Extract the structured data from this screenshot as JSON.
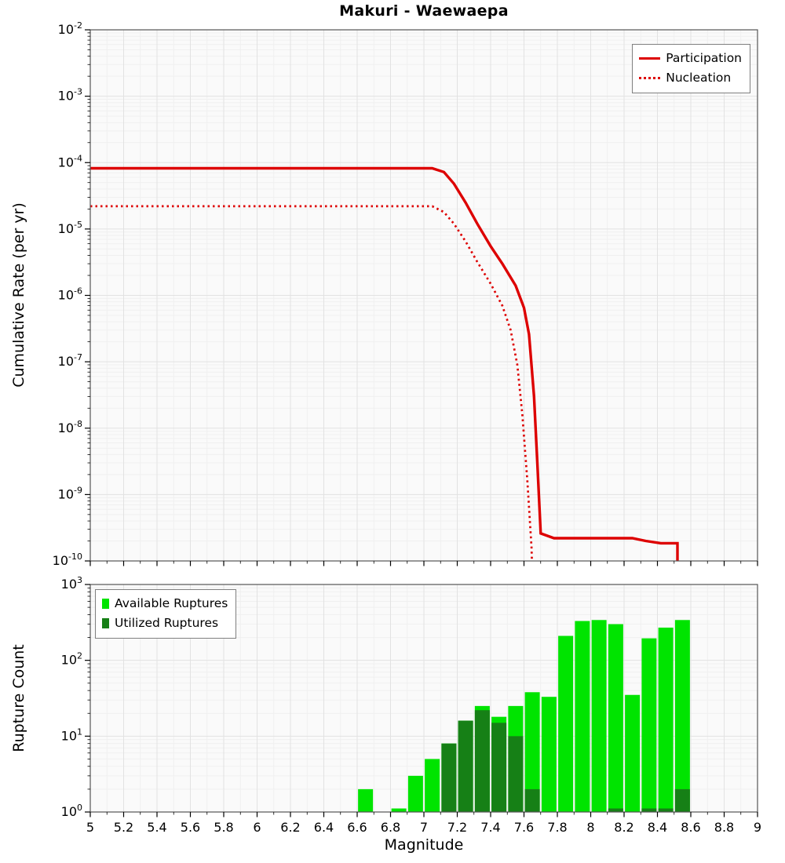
{
  "title": "Makuri - Waewaepa",
  "axes": {
    "x_label": "Magnitude",
    "top_y_label": "Cumulative Rate (per yr)",
    "bottom_y_label": "Rupture Count"
  },
  "colors": {
    "participation": "#dd0000",
    "nucleation": "#dd0000",
    "available": "#00e400",
    "utilized": "#168016",
    "plot_bg": "#fafafa",
    "grid_major": "#e2e2e2",
    "grid_minor": "#f0f0f0",
    "border": "#555555"
  },
  "legend_top": {
    "items": [
      {
        "label": "Participation",
        "style": "solid"
      },
      {
        "label": "Nucleation",
        "style": "dotted"
      }
    ]
  },
  "legend_bottom": {
    "items": [
      {
        "label": "Available Ruptures",
        "color_key": "available"
      },
      {
        "label": "Utilized Ruptures",
        "color_key": "utilized"
      }
    ]
  },
  "chart_data": [
    {
      "type": "line",
      "title": "Makuri - Waewaepa",
      "xlabel": "Magnitude",
      "ylabel": "Cumulative Rate (per yr)",
      "y_scale": "log",
      "xlim": [
        5,
        9
      ],
      "x_tick_step": 0.2,
      "ylim_log10": [
        -10,
        -2
      ],
      "y_tick_exponents": [
        -2,
        -3,
        -4,
        -5,
        -6,
        -7,
        -8,
        -9,
        -10
      ],
      "grid": true,
      "legend_position": "top-right",
      "series": [
        {
          "name": "Participation",
          "style": "solid",
          "points": [
            [
              5.0,
              8.2e-05
            ],
            [
              7.05,
              8.2e-05
            ],
            [
              7.12,
              7.2e-05
            ],
            [
              7.18,
              4.8e-05
            ],
            [
              7.25,
              2.5e-05
            ],
            [
              7.32,
              1.2e-05
            ],
            [
              7.4,
              5.5e-06
            ],
            [
              7.47,
              3e-06
            ],
            [
              7.55,
              1.4e-06
            ],
            [
              7.6,
              6.5e-07
            ],
            [
              7.63,
              2.6e-07
            ],
            [
              7.66,
              3e-08
            ],
            [
              7.68,
              3e-09
            ],
            [
              7.7,
              2.6e-10
            ],
            [
              7.78,
              2.2e-10
            ],
            [
              8.25,
              2.2e-10
            ],
            [
              8.33,
              2e-10
            ],
            [
              8.42,
              1.85e-10
            ],
            [
              8.52,
              1.85e-10
            ],
            [
              8.52,
              4e-11
            ]
          ]
        },
        {
          "name": "Nucleation",
          "style": "dotted",
          "points": [
            [
              5.0,
              2.2e-05
            ],
            [
              7.05,
              2.2e-05
            ],
            [
              7.12,
              1.8e-05
            ],
            [
              7.18,
              1.2e-05
            ],
            [
              7.25,
              6.5e-06
            ],
            [
              7.32,
              3.2e-06
            ],
            [
              7.4,
              1.5e-06
            ],
            [
              7.47,
              7e-07
            ],
            [
              7.52,
              3e-07
            ],
            [
              7.56,
              9e-08
            ],
            [
              7.59,
              1.6e-08
            ],
            [
              7.62,
              1.6e-09
            ],
            [
              7.645,
              1.6e-10
            ],
            [
              7.66,
              8e-12
            ]
          ]
        }
      ]
    },
    {
      "type": "bar",
      "xlabel": "Magnitude",
      "ylabel": "Rupture Count",
      "y_scale": "log",
      "xlim": [
        5,
        9
      ],
      "x_tick_step": 0.2,
      "ylim_log10": [
        0,
        3
      ],
      "y_tick_exponents": [
        0,
        1,
        2,
        3
      ],
      "bin_width": 0.1,
      "grid": true,
      "legend_position": "top-left",
      "series_names": [
        "Available Ruptures",
        "Utilized Ruptures"
      ],
      "bars": [
        {
          "m": 6.65,
          "available": 2,
          "utilized": 0
        },
        {
          "m": 6.85,
          "available": 1,
          "utilized": 0
        },
        {
          "m": 6.95,
          "available": 3,
          "utilized": 0
        },
        {
          "m": 7.05,
          "available": 5,
          "utilized": 0
        },
        {
          "m": 7.15,
          "available": 8,
          "utilized": 8
        },
        {
          "m": 7.25,
          "available": 16,
          "utilized": 16
        },
        {
          "m": 7.35,
          "available": 25,
          "utilized": 22
        },
        {
          "m": 7.45,
          "available": 18,
          "utilized": 15
        },
        {
          "m": 7.55,
          "available": 25,
          "utilized": 10
        },
        {
          "m": 7.65,
          "available": 38,
          "utilized": 2
        },
        {
          "m": 7.75,
          "available": 33,
          "utilized": 0
        },
        {
          "m": 7.85,
          "available": 210,
          "utilized": 0
        },
        {
          "m": 7.95,
          "available": 330,
          "utilized": 0
        },
        {
          "m": 8.05,
          "available": 340,
          "utilized": 0
        },
        {
          "m": 8.15,
          "available": 300,
          "utilized": 1
        },
        {
          "m": 8.25,
          "available": 35,
          "utilized": 0
        },
        {
          "m": 8.35,
          "available": 195,
          "utilized": 1
        },
        {
          "m": 8.45,
          "available": 270,
          "utilized": 1
        },
        {
          "m": 8.55,
          "available": 340,
          "utilized": 2
        }
      ]
    }
  ]
}
